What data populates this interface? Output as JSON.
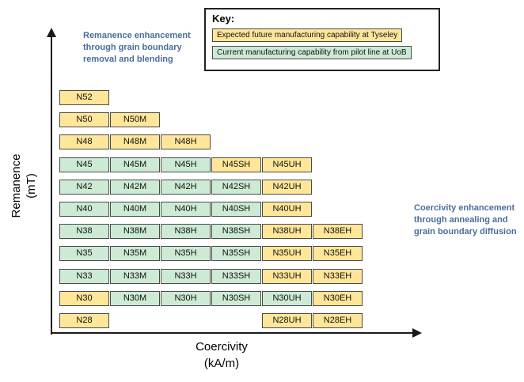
{
  "key": {
    "title": "Key:",
    "entries": [
      {
        "label": "Expected future manufacturing capability at Tyseley",
        "status": "future"
      },
      {
        "label": "Current manufacturing capability from pilot line at UoB",
        "status": "current"
      }
    ]
  },
  "annotations": {
    "remanence": "Remanence enhancement\nthrough grain boundary\nremoval and blending",
    "coercivity": "Coercivity enhancement\nthrough annealing and\ngrain boundary diffusion"
  },
  "axes": {
    "y_line1": "Remanence",
    "y_line2": "(mT)",
    "x_line1": "Coercivity",
    "x_line2": "(kA/m)"
  },
  "colors": {
    "future": "#FFE699",
    "current": "#CDEAD5",
    "annotation": "#4A6D9B",
    "axis": "#1A1A1A"
  },
  "chart_data": {
    "type": "table",
    "xlabel": "Coercivity (kA/m)",
    "ylabel": "Remanence (mT)",
    "column_suffixes": [
      "",
      "M",
      "H",
      "SH",
      "UH",
      "EH"
    ],
    "legend": {
      "future": "Expected future manufacturing capability at Tyseley",
      "current": "Current manufacturing capability from pilot line at UoB"
    },
    "rows": [
      {
        "grade": "N52",
        "cells": [
          {
            "label": "N52",
            "col": 0,
            "status": "future"
          }
        ]
      },
      {
        "grade": "N50",
        "cells": [
          {
            "label": "N50",
            "col": 0,
            "status": "future"
          },
          {
            "label": "N50M",
            "col": 1,
            "status": "future"
          }
        ]
      },
      {
        "grade": "N48",
        "cells": [
          {
            "label": "N48",
            "col": 0,
            "status": "future"
          },
          {
            "label": "N48M",
            "col": 1,
            "status": "future"
          },
          {
            "label": "N48H",
            "col": 2,
            "status": "future"
          }
        ]
      },
      {
        "grade": "N45",
        "cells": [
          {
            "label": "N45",
            "col": 0,
            "status": "current"
          },
          {
            "label": "N45M",
            "col": 1,
            "status": "current"
          },
          {
            "label": "N45H",
            "col": 2,
            "status": "current"
          },
          {
            "label": "N45SH",
            "col": 3,
            "status": "future"
          },
          {
            "label": "N45UH",
            "col": 4,
            "status": "future"
          }
        ]
      },
      {
        "grade": "N42",
        "cells": [
          {
            "label": "N42",
            "col": 0,
            "status": "current"
          },
          {
            "label": "N42M",
            "col": 1,
            "status": "current"
          },
          {
            "label": "N42H",
            "col": 2,
            "status": "current"
          },
          {
            "label": "N42SH",
            "col": 3,
            "status": "current"
          },
          {
            "label": "N42UH",
            "col": 4,
            "status": "future"
          }
        ]
      },
      {
        "grade": "N40",
        "cells": [
          {
            "label": "N40",
            "col": 0,
            "status": "current"
          },
          {
            "label": "N40M",
            "col": 1,
            "status": "current"
          },
          {
            "label": "N40H",
            "col": 2,
            "status": "current"
          },
          {
            "label": "N40SH",
            "col": 3,
            "status": "current"
          },
          {
            "label": "N40UH",
            "col": 4,
            "status": "future"
          }
        ]
      },
      {
        "grade": "N38",
        "cells": [
          {
            "label": "N38",
            "col": 0,
            "status": "current"
          },
          {
            "label": "N38M",
            "col": 1,
            "status": "current"
          },
          {
            "label": "N38H",
            "col": 2,
            "status": "current"
          },
          {
            "label": "N38SH",
            "col": 3,
            "status": "current"
          },
          {
            "label": "N38UH",
            "col": 4,
            "status": "future"
          },
          {
            "label": "N38EH",
            "col": 5,
            "status": "future"
          }
        ]
      },
      {
        "grade": "N35",
        "cells": [
          {
            "label": "N35",
            "col": 0,
            "status": "current"
          },
          {
            "label": "N35M",
            "col": 1,
            "status": "current"
          },
          {
            "label": "N35H",
            "col": 2,
            "status": "current"
          },
          {
            "label": "N35SH",
            "col": 3,
            "status": "current"
          },
          {
            "label": "N35UH",
            "col": 4,
            "status": "future"
          },
          {
            "label": "N35EH",
            "col": 5,
            "status": "future"
          }
        ]
      },
      {
        "grade": "N33",
        "cells": [
          {
            "label": "N33",
            "col": 0,
            "status": "current"
          },
          {
            "label": "N33M",
            "col": 1,
            "status": "current"
          },
          {
            "label": "N33H",
            "col": 2,
            "status": "current"
          },
          {
            "label": "N33SH",
            "col": 3,
            "status": "current"
          },
          {
            "label": "N33UH",
            "col": 4,
            "status": "future"
          },
          {
            "label": "N33EH",
            "col": 5,
            "status": "future"
          }
        ]
      },
      {
        "grade": "N30",
        "cells": [
          {
            "label": "N30",
            "col": 0,
            "status": "future"
          },
          {
            "label": "N30M",
            "col": 1,
            "status": "current"
          },
          {
            "label": "N30H",
            "col": 2,
            "status": "current"
          },
          {
            "label": "N30SH",
            "col": 3,
            "status": "current"
          },
          {
            "label": "N30UH",
            "col": 4,
            "status": "current"
          },
          {
            "label": "N30EH",
            "col": 5,
            "status": "future"
          }
        ]
      },
      {
        "grade": "N28",
        "cells": [
          {
            "label": "N28",
            "col": 0,
            "status": "future"
          },
          {
            "label": "N28UH",
            "col": 4,
            "status": "future"
          },
          {
            "label": "N28EH",
            "col": 5,
            "status": "future"
          }
        ]
      }
    ]
  }
}
